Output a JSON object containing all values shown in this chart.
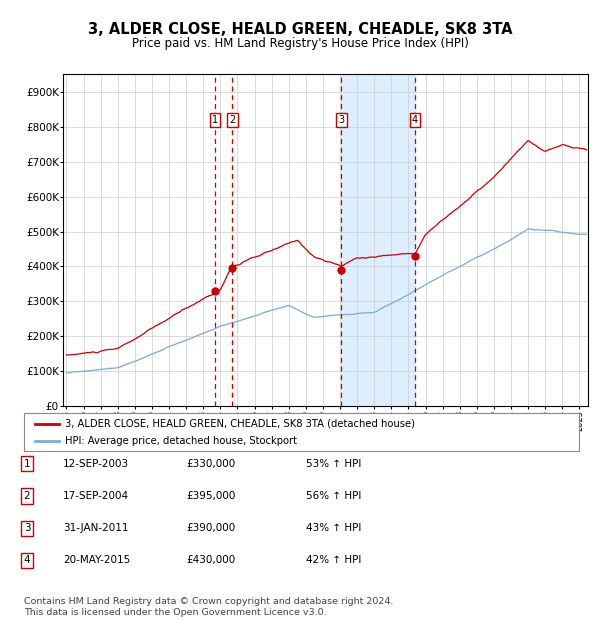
{
  "title": "3, ALDER CLOSE, HEALD GREEN, CHEADLE, SK8 3TA",
  "subtitle": "Price paid vs. HM Land Registry's House Price Index (HPI)",
  "title_fontsize": 10.5,
  "subtitle_fontsize": 8.5,
  "ylim": [
    0,
    950000
  ],
  "yticks": [
    0,
    100000,
    200000,
    300000,
    400000,
    500000,
    600000,
    700000,
    800000,
    900000
  ],
  "ytick_labels": [
    "£0",
    "£100K",
    "£200K",
    "£300K",
    "£400K",
    "£500K",
    "£600K",
    "£700K",
    "£800K",
    "£900K"
  ],
  "xlim_start": 1994.8,
  "xlim_end": 2025.5,
  "grid_color": "#cccccc",
  "background_color": "#ffffff",
  "red_line_color": "#cc0000",
  "blue_line_color": "#7aaadd",
  "sale_marker_color": "#cc0000",
  "dashed_line_color": "#cc0000",
  "shade_color": "#ddeeff",
  "legend_red_label": "3, ALDER CLOSE, HEALD GREEN, CHEADLE, SK8 3TA (detached house)",
  "legend_blue_label": "HPI: Average price, detached house, Stockport",
  "transactions": [
    {
      "num": 1,
      "date_year": 2003.7,
      "price": 330000,
      "label": "12-SEP-2003",
      "pct": "53% ↑ HPI"
    },
    {
      "num": 2,
      "date_year": 2004.7,
      "price": 395000,
      "label": "17-SEP-2004",
      "pct": "56% ↑ HPI"
    },
    {
      "num": 3,
      "date_year": 2011.08,
      "price": 390000,
      "label": "31-JAN-2011",
      "pct": "43% ↑ HPI"
    },
    {
      "num": 4,
      "date_year": 2015.38,
      "price": 430000,
      "label": "20-MAY-2015",
      "pct": "42% ↑ HPI"
    }
  ],
  "shade_start": 2011.08,
  "shade_end": 2015.38,
  "table_rows": [
    {
      "num": "1",
      "date": "12-SEP-2003",
      "price": "£330,000",
      "pct": "53% ↑ HPI"
    },
    {
      "num": "2",
      "date": "17-SEP-2004",
      "price": "£395,000",
      "pct": "56% ↑ HPI"
    },
    {
      "num": "3",
      "date": "31-JAN-2011",
      "price": "£390,000",
      "pct": "43% ↑ HPI"
    },
    {
      "num": "4",
      "date": "20-MAY-2015",
      "price": "£430,000",
      "pct": "42% ↑ HPI"
    }
  ],
  "footer": "Contains HM Land Registry data © Crown copyright and database right 2024.\nThis data is licensed under the Open Government Licence v3.0.",
  "footer_fontsize": 6.8
}
